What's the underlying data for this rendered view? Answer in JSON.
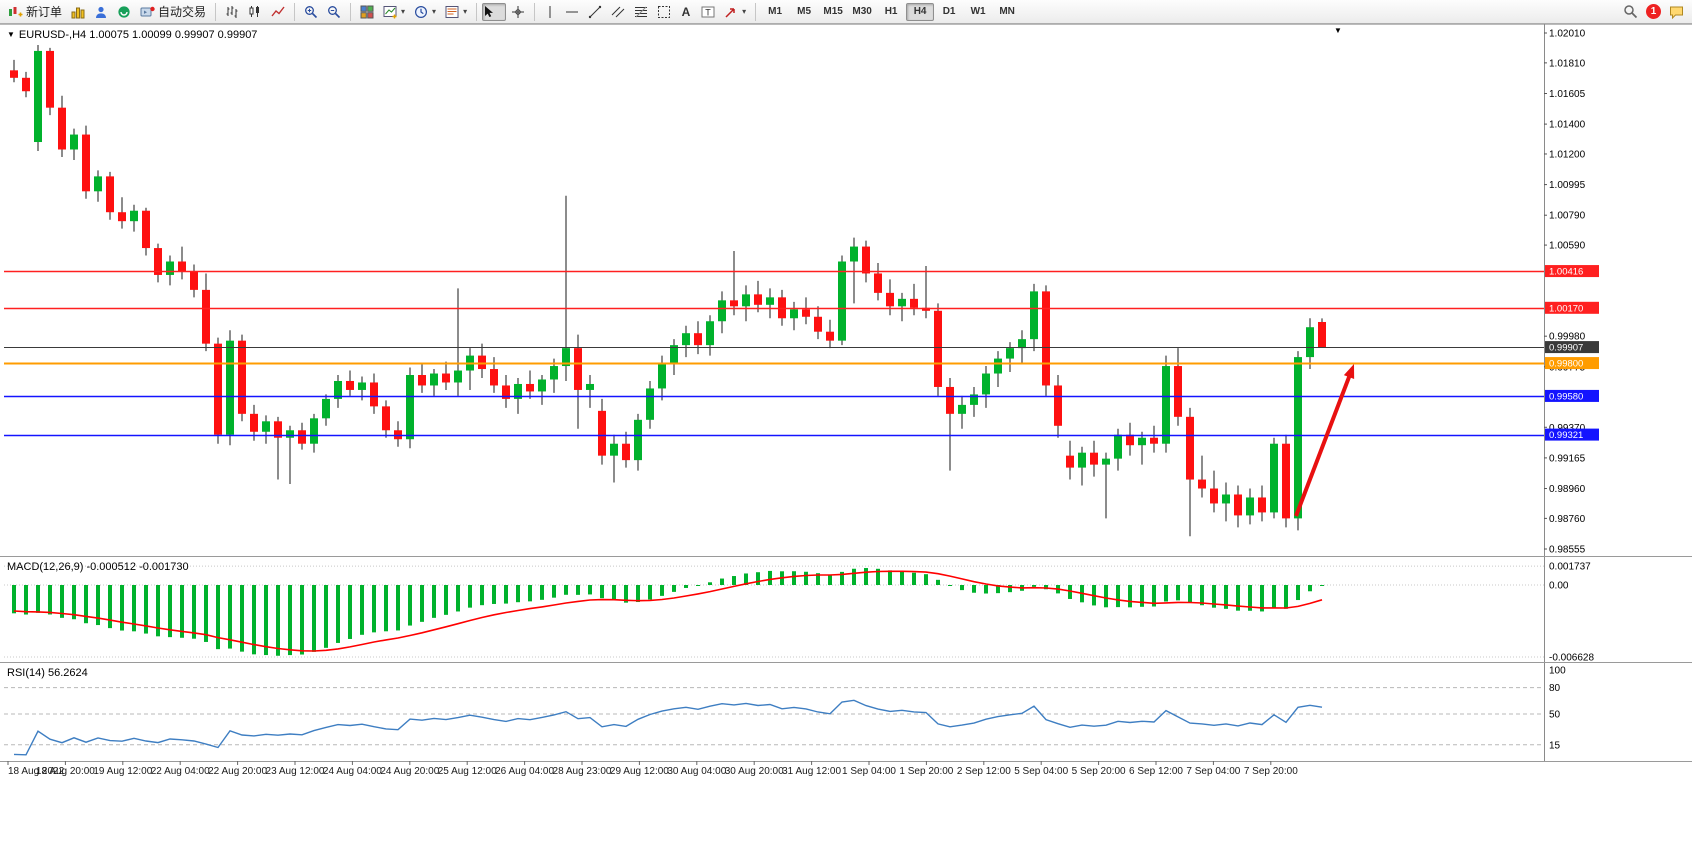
{
  "toolbar": {
    "new_order_label": "新订单",
    "autotrading_label": "自动交易",
    "timeframes": [
      "M1",
      "M5",
      "M15",
      "M30",
      "H1",
      "H4",
      "D1",
      "W1",
      "MN"
    ],
    "active_timeframe": "H4",
    "notification_count": "1"
  },
  "chart_data": {
    "type": "candlestick",
    "title": "EURUSD-,H4 1.00075 1.00099 0.99907 0.99907",
    "symbol": "EURUSD-",
    "period": "H4",
    "ohlc": {
      "open": "1.00075",
      "high": "1.00099",
      "low": "0.99907",
      "close": "0.99907"
    },
    "colors": {
      "bull": "#00b22c",
      "bear": "#fe1010",
      "wick": "#1a1a1a",
      "macd_histogram": "#00b22c",
      "macd_signal": "#ff0000",
      "rsi_line": "#3e7ec2",
      "arrow": "#e81010"
    },
    "levels": [
      {
        "value": 1.00416,
        "label": "1.00416",
        "color": "#ff2020",
        "width": 1.6
      },
      {
        "value": 1.0017,
        "label": "1.00170",
        "color": "#ff2020",
        "width": 1.6
      },
      {
        "value": 0.99907,
        "label": "0.99907",
        "color": "#3a3a3a",
        "width": 1,
        "role": "current-price"
      },
      {
        "value": 0.998,
        "label": "0.99800",
        "color": "#ff9c00",
        "width": 2
      },
      {
        "value": 0.9958,
        "label": "0.99580",
        "color": "#1414ff",
        "width": 1.6
      },
      {
        "value": 0.99321,
        "label": "0.99321",
        "color": "#1414ff",
        "width": 1.6
      }
    ],
    "price_axis_labels": [
      "1.02010",
      "1.01810",
      "1.01605",
      "1.01400",
      "1.01200",
      "1.00995",
      "1.00790",
      "1.00590",
      "0.99980",
      "0.99775",
      "0.99370",
      "0.99165",
      "0.98960",
      "0.98760",
      "0.98555"
    ],
    "time_labels": [
      "18 Aug 2022",
      "18 Aug 20:00",
      "19 Aug 12:00",
      "22 Aug 04:00",
      "22 Aug 20:00",
      "23 Aug 12:00",
      "24 Aug 04:00",
      "24 Aug 20:00",
      "25 Aug 12:00",
      "26 Aug 04:00",
      "28 Aug 23:00",
      "29 Aug 12:00",
      "30 Aug 04:00",
      "30 Aug 20:00",
      "31 Aug 12:00",
      "1 Sep 04:00",
      "1 Sep 20:00",
      "2 Sep 12:00",
      "5 Sep 04:00",
      "5 Sep 20:00",
      "6 Sep 12:00",
      "7 Sep 04:00",
      "7 Sep 20:00"
    ],
    "candles": [
      [
        1.0176,
        1.0183,
        1.0168,
        1.0171
      ],
      [
        1.0171,
        1.0175,
        1.0158,
        1.0162
      ],
      [
        1.0128,
        1.0193,
        1.0122,
        1.0189
      ],
      [
        1.0189,
        1.0191,
        1.0146,
        1.0151
      ],
      [
        1.0151,
        1.0159,
        1.0118,
        1.0123
      ],
      [
        1.0123,
        1.0137,
        1.0116,
        1.0133
      ],
      [
        1.0133,
        1.0139,
        1.009,
        1.0095
      ],
      [
        1.0095,
        1.0109,
        1.0088,
        1.0105
      ],
      [
        1.0105,
        1.0108,
        1.0076,
        1.0081
      ],
      [
        1.0081,
        1.0091,
        1.007,
        1.0075
      ],
      [
        1.0075,
        1.0086,
        1.0068,
        1.0082
      ],
      [
        1.0082,
        1.0084,
        1.0052,
        1.0057
      ],
      [
        1.0057,
        1.006,
        1.0034,
        1.0039
      ],
      [
        1.0039,
        1.0052,
        1.0032,
        1.0048
      ],
      [
        1.0048,
        1.0058,
        1.0036,
        1.0041
      ],
      [
        1.0041,
        1.0046,
        1.0024,
        1.0029
      ],
      [
        1.0029,
        1.004,
        0.9988,
        0.9993
      ],
      [
        0.9993,
        0.9997,
        0.9926,
        0.9932
      ],
      [
        0.9932,
        1.0002,
        0.9925,
        0.9995
      ],
      [
        0.9995,
        0.9999,
        0.9941,
        0.9946
      ],
      [
        0.9946,
        0.9952,
        0.9928,
        0.9934
      ],
      [
        0.9934,
        0.9945,
        0.9926,
        0.9941
      ],
      [
        0.9941,
        0.9944,
        0.9902,
        0.993
      ],
      [
        0.993,
        0.9938,
        0.9899,
        0.9935
      ],
      [
        0.9935,
        0.994,
        0.9922,
        0.9926
      ],
      [
        0.9926,
        0.9946,
        0.992,
        0.9943
      ],
      [
        0.9943,
        0.9959,
        0.9938,
        0.9956
      ],
      [
        0.9956,
        0.9972,
        0.995,
        0.9968
      ],
      [
        0.9968,
        0.9975,
        0.9958,
        0.9962
      ],
      [
        0.9962,
        0.9971,
        0.9955,
        0.9967
      ],
      [
        0.9967,
        0.9973,
        0.9946,
        0.9951
      ],
      [
        0.9951,
        0.9955,
        0.993,
        0.9935
      ],
      [
        0.9935,
        0.9941,
        0.9924,
        0.9929
      ],
      [
        0.9929,
        0.9977,
        0.9923,
        0.9972
      ],
      [
        0.9972,
        0.9979,
        0.996,
        0.9965
      ],
      [
        0.9965,
        0.9976,
        0.9958,
        0.9973
      ],
      [
        0.9973,
        0.9981,
        0.9962,
        0.9967
      ],
      [
        0.9967,
        1.003,
        0.9958,
        0.9975
      ],
      [
        0.9975,
        0.999,
        0.9962,
        0.9985
      ],
      [
        0.9985,
        0.9993,
        0.997,
        0.9976
      ],
      [
        0.9976,
        0.9984,
        0.996,
        0.9965
      ],
      [
        0.9965,
        0.9972,
        0.995,
        0.9956
      ],
      [
        0.9956,
        0.997,
        0.9946,
        0.9966
      ],
      [
        0.9966,
        0.9975,
        0.9956,
        0.9961
      ],
      [
        0.9961,
        0.9972,
        0.9952,
        0.9969
      ],
      [
        0.9969,
        0.9983,
        0.996,
        0.9978
      ],
      [
        0.9978,
        1.0092,
        0.9968,
        0.999
      ],
      [
        0.999,
        0.9999,
        0.9936,
        0.9962
      ],
      [
        0.9962,
        0.9972,
        0.995,
        0.9966
      ],
      [
        0.9948,
        0.9956,
        0.9912,
        0.9918
      ],
      [
        0.9918,
        0.9932,
        0.99,
        0.9926
      ],
      [
        0.9926,
        0.9934,
        0.991,
        0.9915
      ],
      [
        0.9915,
        0.9946,
        0.9908,
        0.9942
      ],
      [
        0.9942,
        0.9968,
        0.9936,
        0.9963
      ],
      [
        0.9963,
        0.9985,
        0.9955,
        0.998
      ],
      [
        0.998,
        0.9996,
        0.9972,
        0.9992
      ],
      [
        0.9992,
        1.0005,
        0.9984,
        1.0
      ],
      [
        1.0,
        1.0008,
        0.9986,
        0.9992
      ],
      [
        0.9992,
        1.0012,
        0.9985,
        1.0008
      ],
      [
        1.0008,
        1.0028,
        1.0,
        1.0022
      ],
      [
        1.0022,
        1.0055,
        1.0012,
        1.0018
      ],
      [
        1.0018,
        1.0032,
        1.0008,
        1.0026
      ],
      [
        1.0026,
        1.0035,
        1.0014,
        1.0019
      ],
      [
        1.0019,
        1.003,
        1.001,
        1.0024
      ],
      [
        1.0024,
        1.0029,
        1.0005,
        1.001
      ],
      [
        1.001,
        1.0021,
        1.0002,
        1.0016
      ],
      [
        1.0016,
        1.0024,
        1.0006,
        1.0011
      ],
      [
        1.0011,
        1.0018,
        0.9996,
        1.0001
      ],
      [
        1.0001,
        1.0009,
        0.999,
        0.9995
      ],
      [
        0.9995,
        1.0052,
        0.9992,
        1.0048
      ],
      [
        1.0048,
        1.0064,
        1.002,
        1.0058
      ],
      [
        1.0058,
        1.0062,
        1.0034,
        1.004
      ],
      [
        1.004,
        1.0047,
        1.0022,
        1.0027
      ],
      [
        1.0027,
        1.0036,
        1.0012,
        1.0018
      ],
      [
        1.0018,
        1.0027,
        1.0008,
        1.0023
      ],
      [
        1.0023,
        1.0033,
        1.0012,
        1.0017
      ],
      [
        1.0017,
        1.0045,
        1.001,
        1.0015
      ],
      [
        1.0015,
        1.002,
        0.9958,
        0.9964
      ],
      [
        0.9964,
        0.997,
        0.9908,
        0.9946
      ],
      [
        0.9946,
        0.9958,
        0.9936,
        0.9952
      ],
      [
        0.9952,
        0.9964,
        0.9944,
        0.9959
      ],
      [
        0.9959,
        0.9978,
        0.995,
        0.9973
      ],
      [
        0.9973,
        0.9988,
        0.9964,
        0.9983
      ],
      [
        0.9983,
        0.9994,
        0.9974,
        0.999
      ],
      [
        0.999,
        1.0002,
        0.998,
        0.9996
      ],
      [
        0.9996,
        1.0033,
        0.9988,
        1.0028
      ],
      [
        1.0028,
        1.0032,
        0.9958,
        0.9965
      ],
      [
        0.9965,
        0.9972,
        0.993,
        0.9938
      ],
      [
        0.9918,
        0.9928,
        0.9902,
        0.991
      ],
      [
        0.991,
        0.9924,
        0.9898,
        0.992
      ],
      [
        0.992,
        0.9928,
        0.9904,
        0.9912
      ],
      [
        0.9912,
        0.992,
        0.9876,
        0.9916
      ],
      [
        0.9916,
        0.9936,
        0.9908,
        0.9932
      ],
      [
        0.9932,
        0.994,
        0.9918,
        0.9925
      ],
      [
        0.9925,
        0.9934,
        0.9912,
        0.993
      ],
      [
        0.993,
        0.9938,
        0.992,
        0.9926
      ],
      [
        0.9926,
        0.9985,
        0.992,
        0.9978
      ],
      [
        0.9978,
        0.999,
        0.9938,
        0.9944
      ],
      [
        0.9944,
        0.995,
        0.9864,
        0.9902
      ],
      [
        0.9902,
        0.9918,
        0.989,
        0.9896
      ],
      [
        0.9896,
        0.9908,
        0.988,
        0.9886
      ],
      [
        0.9886,
        0.99,
        0.9874,
        0.9892
      ],
      [
        0.9892,
        0.9898,
        0.987,
        0.9878
      ],
      [
        0.9878,
        0.9896,
        0.9872,
        0.989
      ],
      [
        0.989,
        0.9898,
        0.9874,
        0.988
      ],
      [
        0.988,
        0.993,
        0.9876,
        0.9926
      ],
      [
        0.9926,
        0.9932,
        0.987,
        0.9876
      ],
      [
        0.9876,
        0.9988,
        0.9868,
        0.9984
      ],
      [
        0.9984,
        1.001,
        0.9976,
        1.0004
      ],
      [
        1.00075,
        1.00099,
        0.99907,
        0.99907
      ]
    ],
    "indicators": {
      "macd": {
        "label": "MACD(12,26,9) -0.000512 -0.001730",
        "fast": 12,
        "slow": 26,
        "signal": 9,
        "value": "-0.000512",
        "signal_value": "-0.001730",
        "axis_labels": [
          "0.001737",
          "0.00",
          "-0.006628"
        ]
      },
      "rsi": {
        "label": "RSI(14) 56.2624",
        "period": 14,
        "value": "56.2624",
        "axis_labels": [
          "100",
          "80",
          "50",
          "15"
        ]
      }
    }
  }
}
